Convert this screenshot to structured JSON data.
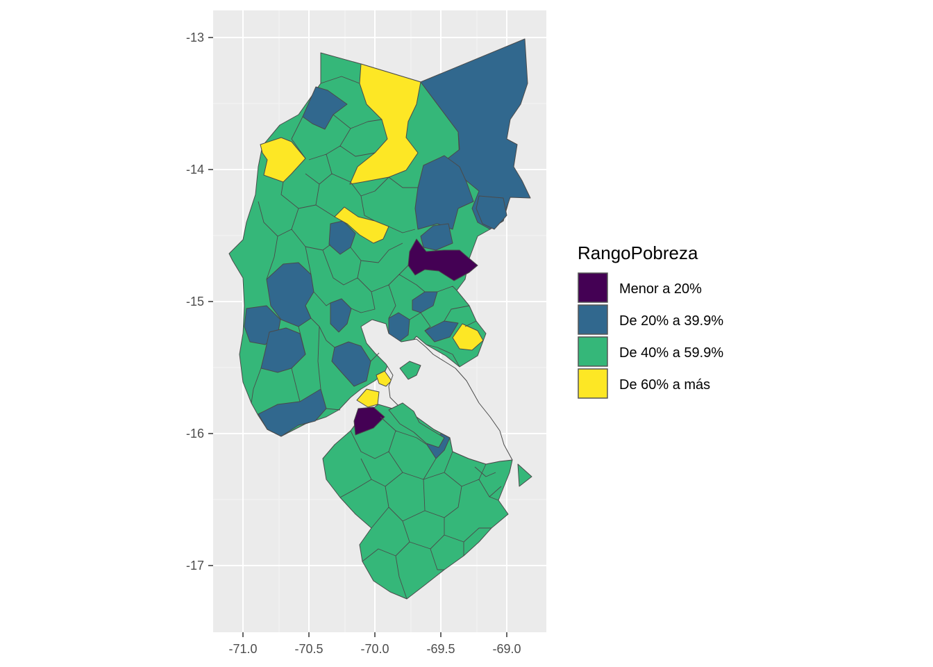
{
  "map": {
    "x_ticks": [
      "-71.0",
      "-70.5",
      "-70.0",
      "-69.5",
      "-69.0"
    ],
    "y_ticks": [
      "-13",
      "-14",
      "-15",
      "-16",
      "-17"
    ],
    "panel_color": "#ebebeb",
    "grid_color": "#ffffff"
  },
  "legend": {
    "title": "RangoPobreza",
    "items": [
      {
        "label": "Menor a 20%",
        "color": "#440154"
      },
      {
        "label": "De 20% a 39.9%",
        "color": "#31688e"
      },
      {
        "label": "De 40% a 59.9%",
        "color": "#35b779"
      },
      {
        "label": "De 60% a más",
        "color": "#fde725"
      }
    ]
  }
}
